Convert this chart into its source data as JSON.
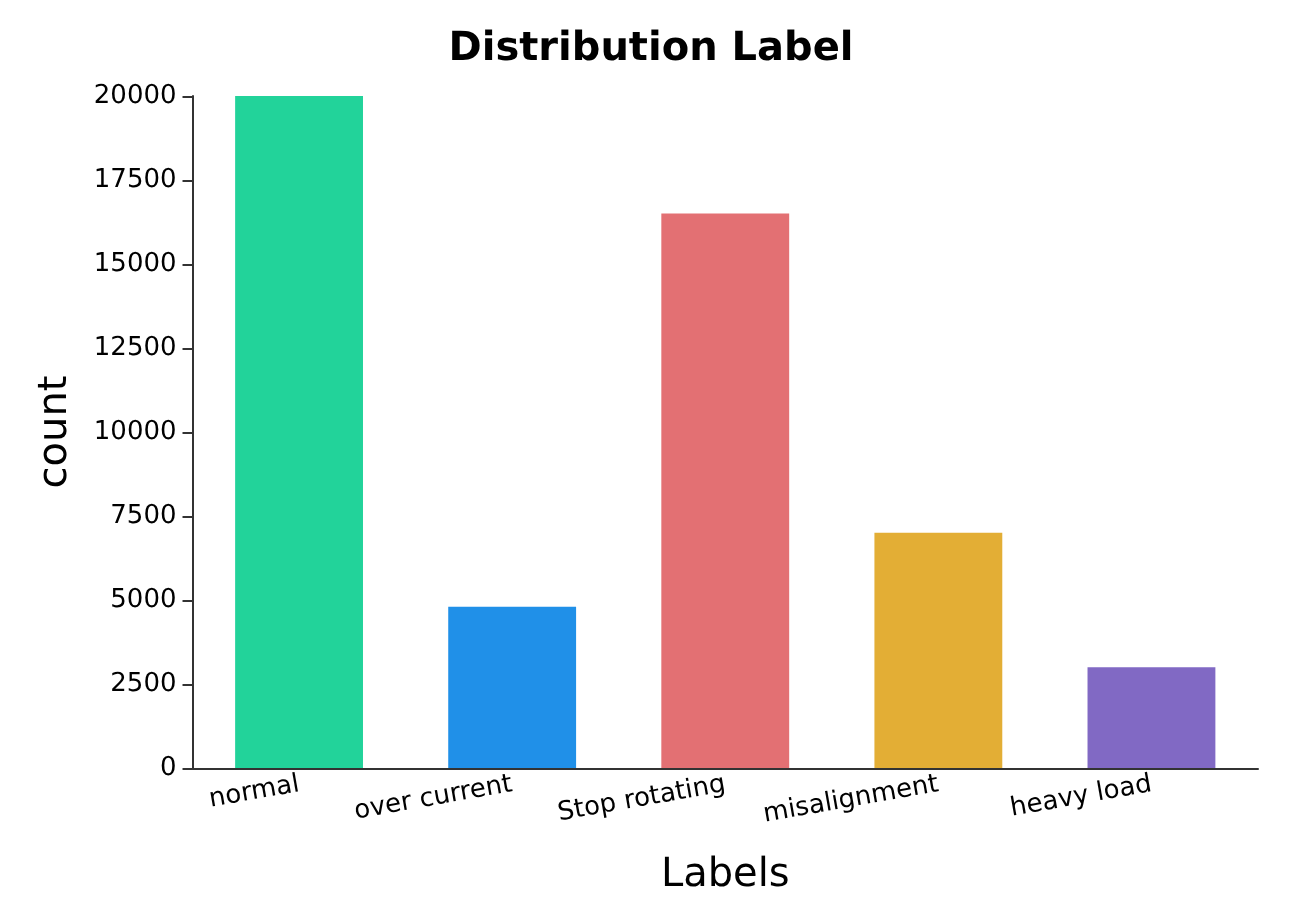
{
  "chart_data": {
    "type": "bar",
    "title": "Distribution Label",
    "xlabel": "Labels",
    "ylabel": "count",
    "categories": [
      "normal",
      "over current",
      "Stop rotating",
      "misalignment",
      "heavy load"
    ],
    "values": [
      20000,
      4800,
      16500,
      7000,
      3000
    ],
    "colors": [
      "#22d39a",
      "#2090e8",
      "#e37073",
      "#e3ae35",
      "#8169c4"
    ],
    "ylim": [
      0,
      20000
    ],
    "yticks": [
      0,
      2500,
      5000,
      7500,
      10000,
      12500,
      15000,
      17500,
      20000
    ],
    "grid": false
  }
}
